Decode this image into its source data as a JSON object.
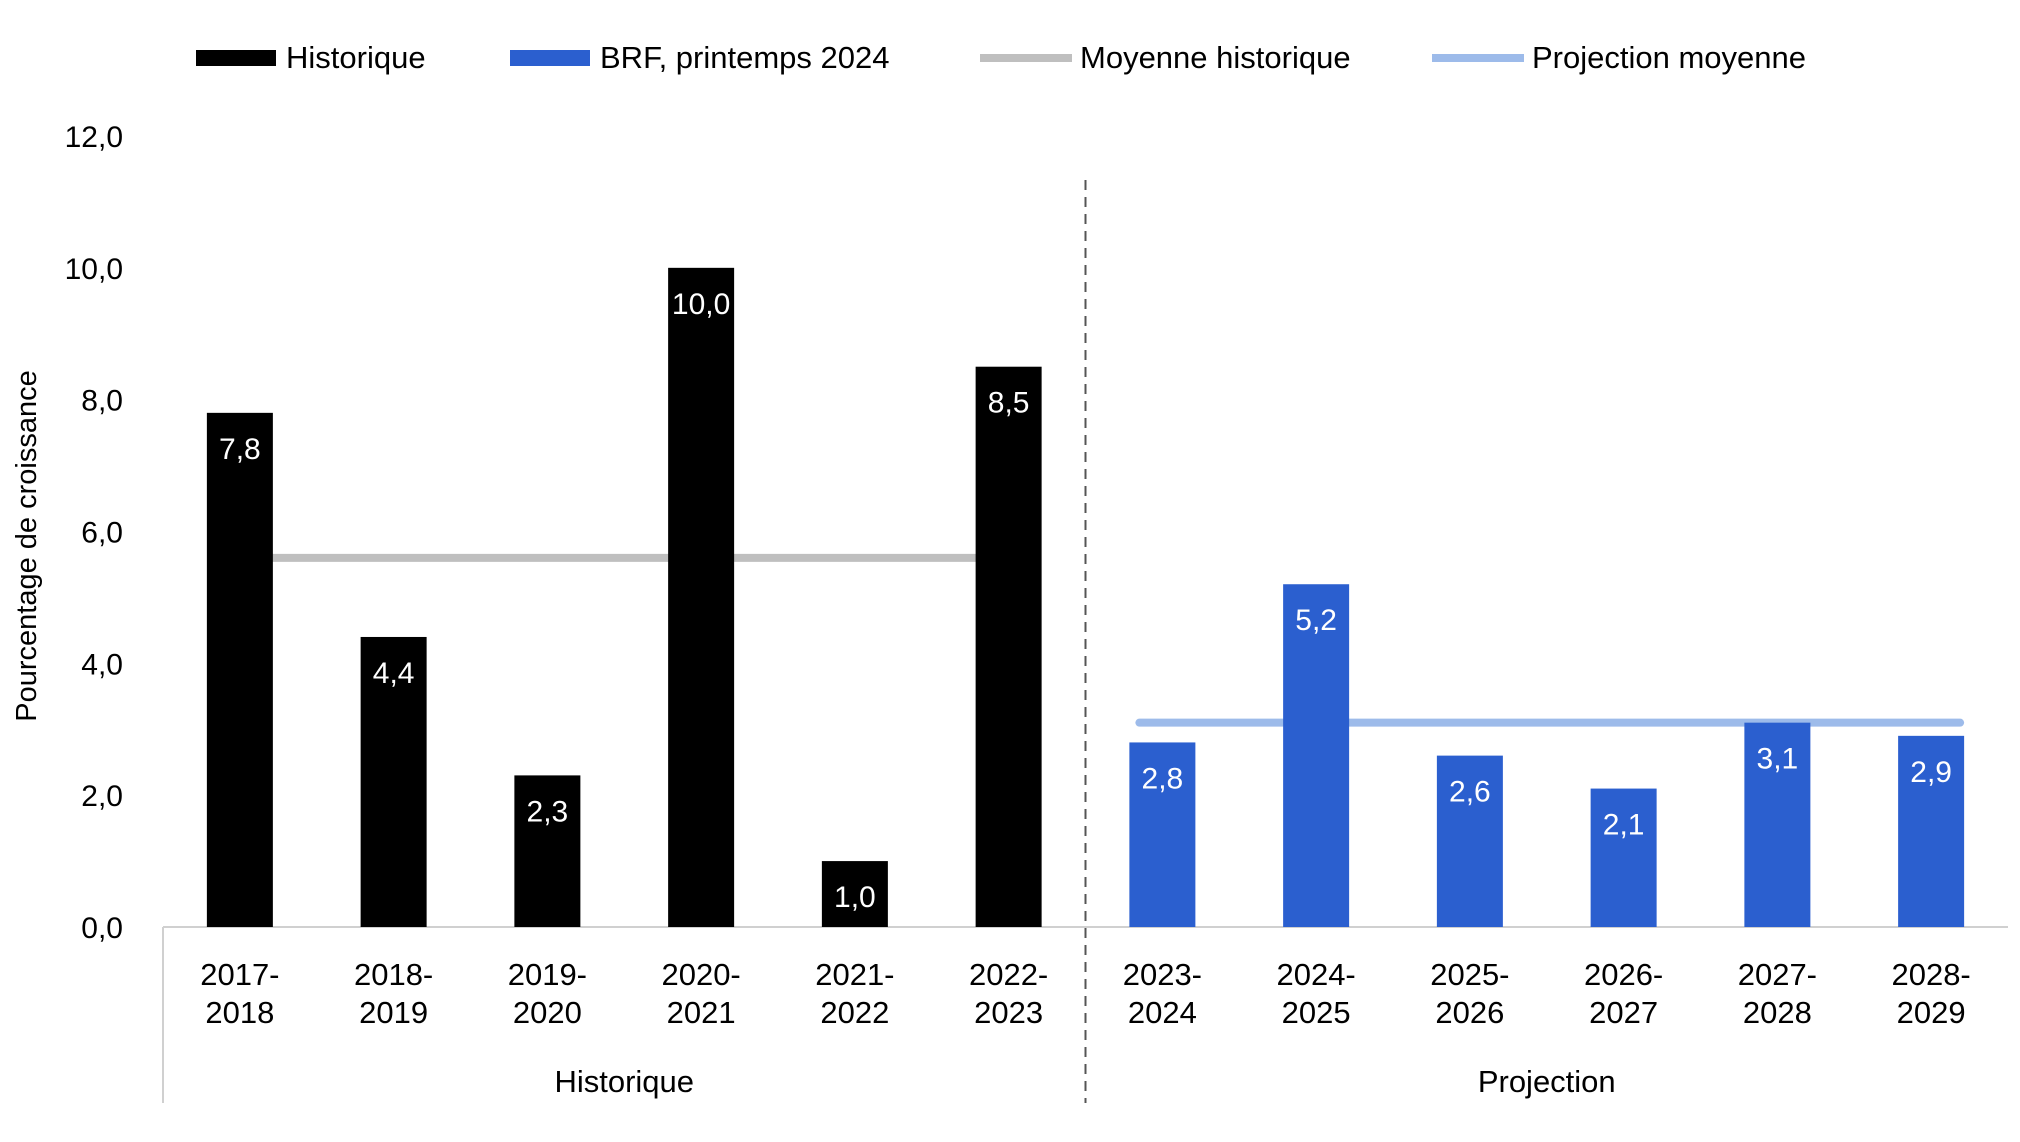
{
  "chart_data": {
    "type": "bar",
    "ylabel": "Pourcentage de croissance",
    "ylim": [
      0,
      12
    ],
    "yticks": [
      "0,0",
      "2,0",
      "4,0",
      "6,0",
      "8,0",
      "10,0",
      "12,0"
    ],
    "categories": [
      "2017-2018",
      "2018-2019",
      "2019-2020",
      "2020-2021",
      "2021-2022",
      "2022-2023",
      "2023-2024",
      "2024-2025",
      "2025-2026",
      "2026-2027",
      "2027-2028",
      "2028-2029"
    ],
    "category_lines": [
      [
        "2017-",
        "2018"
      ],
      [
        "2018-",
        "2019"
      ],
      [
        "2019-",
        "2020"
      ],
      [
        "2020-",
        "2021"
      ],
      [
        "2021-",
        "2022"
      ],
      [
        "2022-",
        "2023"
      ],
      [
        "2023-",
        "2024"
      ],
      [
        "2024-",
        "2025"
      ],
      [
        "2025-",
        "2026"
      ],
      [
        "2026-",
        "2027"
      ],
      [
        "2027-",
        "2028"
      ],
      [
        "2028-",
        "2029"
      ]
    ],
    "groups": [
      {
        "label": "Historique",
        "from": 0,
        "to": 5
      },
      {
        "label": "Projection",
        "from": 6,
        "to": 11
      }
    ],
    "series": [
      {
        "name": "Historique",
        "color": "#000000",
        "values": [
          7.8,
          4.4,
          2.3,
          10.0,
          1.0,
          8.5,
          null,
          null,
          null,
          null,
          null,
          null
        ],
        "labels": [
          "7,8",
          "4,4",
          "2,3",
          "10,0",
          "1,0",
          "8,5",
          "",
          "",
          "",
          "",
          "",
          ""
        ]
      },
      {
        "name": "BRF, printemps 2024",
        "color": "#2b5fcf",
        "values": [
          null,
          null,
          null,
          null,
          null,
          null,
          2.8,
          5.2,
          2.6,
          2.1,
          3.1,
          2.9
        ],
        "labels": [
          "",
          "",
          "",
          "",
          "",
          "",
          "2,8",
          "5,2",
          "2,6",
          "2,1",
          "3,1",
          "2,9"
        ]
      }
    ],
    "reference_lines": [
      {
        "name": "Moyenne historique",
        "color": "#bfbfbf",
        "value": 5.6,
        "from": 0,
        "to": 5
      },
      {
        "name": "Projection moyenne",
        "color": "#9dbbea",
        "value": 3.1,
        "from": 6,
        "to": 11
      }
    ],
    "legend": {
      "position": "top",
      "items": [
        {
          "label": "Historique",
          "kind": "bar",
          "color": "#000000"
        },
        {
          "label": "BRF, printemps 2024",
          "kind": "bar",
          "color": "#2b5fcf"
        },
        {
          "label": "Moyenne historique",
          "kind": "line",
          "color": "#bfbfbf"
        },
        {
          "label": "Projection moyenne",
          "kind": "line",
          "color": "#9dbbea"
        }
      ]
    },
    "grid": false
  }
}
